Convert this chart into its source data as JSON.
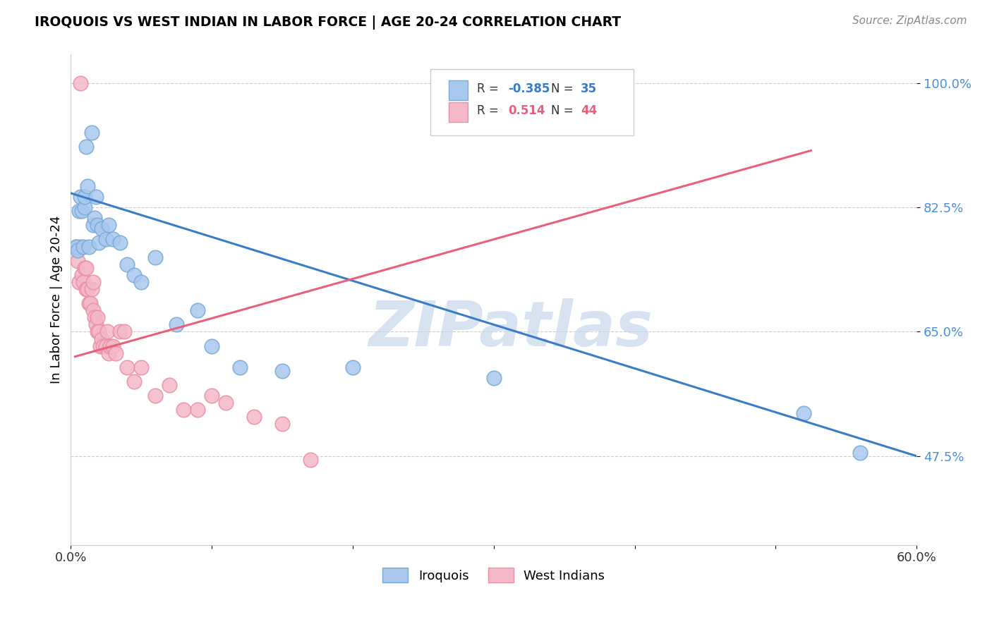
{
  "title": "IROQUOIS VS WEST INDIAN IN LABOR FORCE | AGE 20-24 CORRELATION CHART",
  "source": "Source: ZipAtlas.com",
  "ylabel": "In Labor Force | Age 20-24",
  "x_min": 0.0,
  "x_max": 0.6,
  "y_min": 0.35,
  "y_max": 1.04,
  "x_ticks": [
    0.0,
    0.1,
    0.2,
    0.3,
    0.4,
    0.5,
    0.6
  ],
  "x_tick_labels": [
    "0.0%",
    "",
    "",
    "",
    "",
    "",
    "60.0%"
  ],
  "y_ticks": [
    0.475,
    0.65,
    0.825,
    1.0
  ],
  "y_tick_labels": [
    "47.5%",
    "65.0%",
    "82.5%",
    "100.0%"
  ],
  "iroquois_color": "#A8C8EE",
  "iroquois_edge_color": "#7AAAD4",
  "west_indian_color": "#F4B8C8",
  "west_indian_edge_color": "#E890A8",
  "iroquois_line_color": "#3A7CC7",
  "west_indian_line_color": "#E8607A",
  "watermark": "ZIPatlas",
  "watermark_color": "#C8D8EC",
  "legend_label_1": "Iroquois",
  "legend_label_2": "West Indians",
  "iroquois_x": [
    0.004,
    0.005,
    0.006,
    0.007,
    0.008,
    0.009,
    0.01,
    0.01,
    0.011,
    0.012,
    0.013,
    0.015,
    0.016,
    0.017,
    0.018,
    0.019,
    0.02,
    0.022,
    0.025,
    0.027,
    0.03,
    0.035,
    0.04,
    0.045,
    0.05,
    0.06,
    0.075,
    0.09,
    0.1,
    0.12,
    0.15,
    0.2,
    0.3,
    0.52,
    0.56
  ],
  "iroquois_y": [
    0.77,
    0.765,
    0.82,
    0.84,
    0.82,
    0.77,
    0.825,
    0.84,
    0.91,
    0.855,
    0.77,
    0.93,
    0.8,
    0.81,
    0.84,
    0.8,
    0.775,
    0.795,
    0.78,
    0.8,
    0.78,
    0.775,
    0.745,
    0.73,
    0.72,
    0.755,
    0.66,
    0.68,
    0.63,
    0.6,
    0.595,
    0.6,
    0.585,
    0.535,
    0.48
  ],
  "west_indian_x": [
    0.004,
    0.005,
    0.006,
    0.007,
    0.007,
    0.008,
    0.009,
    0.01,
    0.011,
    0.011,
    0.012,
    0.013,
    0.014,
    0.015,
    0.016,
    0.016,
    0.017,
    0.018,
    0.019,
    0.019,
    0.02,
    0.021,
    0.022,
    0.023,
    0.025,
    0.026,
    0.027,
    0.028,
    0.03,
    0.032,
    0.035,
    0.038,
    0.04,
    0.045,
    0.05,
    0.06,
    0.07,
    0.08,
    0.09,
    0.1,
    0.11,
    0.13,
    0.15,
    0.17
  ],
  "west_indian_y": [
    0.77,
    0.75,
    0.72,
    1.0,
    0.77,
    0.73,
    0.72,
    0.74,
    0.71,
    0.74,
    0.71,
    0.69,
    0.69,
    0.71,
    0.68,
    0.72,
    0.67,
    0.66,
    0.65,
    0.67,
    0.65,
    0.63,
    0.64,
    0.63,
    0.63,
    0.65,
    0.62,
    0.63,
    0.63,
    0.62,
    0.65,
    0.65,
    0.6,
    0.58,
    0.6,
    0.56,
    0.575,
    0.54,
    0.54,
    0.56,
    0.55,
    0.53,
    0.52,
    0.47
  ],
  "iroquois_line_x0": 0.0,
  "iroquois_line_x1": 0.6,
  "iroquois_line_y0": 0.845,
  "iroquois_line_y1": 0.475,
  "west_indian_line_x0": 0.003,
  "west_indian_line_x1": 0.525,
  "west_indian_line_y0": 0.615,
  "west_indian_line_y1": 0.905
}
